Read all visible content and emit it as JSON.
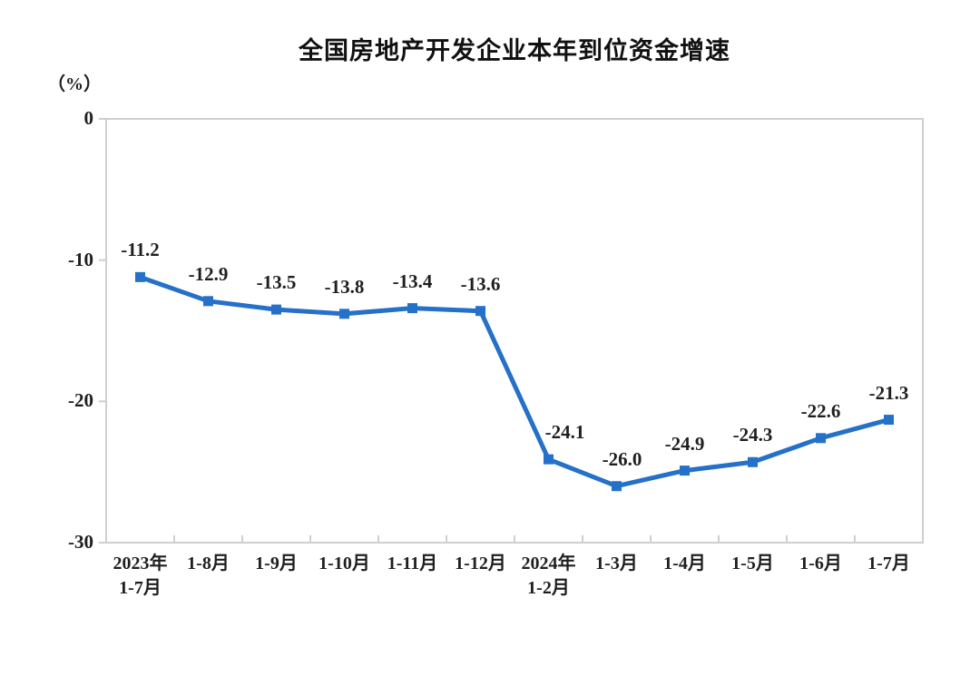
{
  "page": {
    "background": "#ffffff"
  },
  "chart_data": {
    "type": "line",
    "title": "全国房地产开发企业本年到位资金增速",
    "ylabel": "（%）",
    "xlabel": "",
    "categories": [
      "2023年\n1-7月",
      "1-8月",
      "1-9月",
      "1-10月",
      "1-11月",
      "1-12月",
      "2024年\n1-2月",
      "1-3月",
      "1-4月",
      "1-5月",
      "1-6月",
      "1-7月"
    ],
    "values": [
      -11.2,
      -12.9,
      -13.5,
      -13.8,
      -13.4,
      -13.6,
      -24.1,
      -26.0,
      -24.9,
      -24.3,
      -22.6,
      -21.3
    ],
    "data_labels": [
      "-11.2",
      "-12.9",
      "-13.5",
      "-13.8",
      "-13.4",
      "-13.6",
      "-24.1",
      "-26.0",
      "-24.9",
      "-24.3",
      "-22.6",
      "-21.3"
    ],
    "yticks": [
      0,
      -10,
      -20,
      -30
    ],
    "ytick_labels": [
      "0",
      "-10",
      "-20",
      "-30"
    ],
    "ylim": [
      -30,
      0
    ],
    "grid": false,
    "legend_position": "none",
    "series_name": "本年到位资金增速",
    "line_color": "#2570c9",
    "marker": "square",
    "marker_color": "#2570c9",
    "axis_color": "#cfcfcf",
    "text_color": "#1f1f1f",
    "title_color": "#111111"
  }
}
